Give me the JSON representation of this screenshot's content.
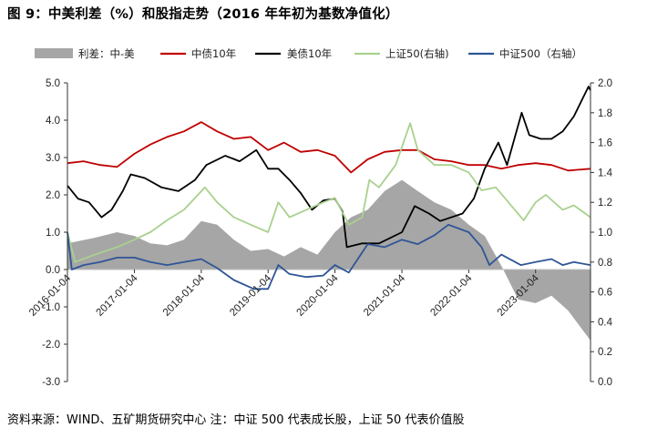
{
  "title": "图 9：中美利差（%）和股指走势（2016 年年初为基数净值化）",
  "source_note": "资料来源：WIND、五矿期货研究中心   注：中证 500 代表成长股，上证 50 代表价值股",
  "chart_data": {
    "type": "line",
    "x_tick_labels": [
      "2016-01-04",
      "2017-01-04",
      "2018-01-04",
      "2019-01-04",
      "2020-01-04",
      "2021-01-04",
      "2022-01-04",
      "2023-01-04"
    ],
    "x_range": [
      "2016-01-04",
      "2023-10-31"
    ],
    "y_left": {
      "min": -3.0,
      "max": 5.0,
      "ticks": [
        "-3.0",
        "-2.0",
        "-1.0",
        "0.0",
        "1.0",
        "2.0",
        "3.0",
        "4.0",
        "5.0"
      ]
    },
    "y_right": {
      "min": 0.0,
      "max": 2.0,
      "ticks": [
        "0.0",
        "0.2",
        "0.4",
        "0.6",
        "0.8",
        "1.0",
        "1.2",
        "1.4",
        "1.6",
        "1.8",
        "2.0"
      ]
    },
    "grid": false,
    "legend_position": "top",
    "series": [
      {
        "name": "利差：中-美",
        "kind": "area",
        "axis": "left",
        "color": "#a6a6a6",
        "x": [
          "2016-01-04",
          "2016-06-01",
          "2016-10-01",
          "2017-01-04",
          "2017-04-01",
          "2017-07-01",
          "2017-10-01",
          "2018-01-04",
          "2018-04-01",
          "2018-07-01",
          "2018-10-01",
          "2019-01-04",
          "2019-04-01",
          "2019-07-01",
          "2019-10-01",
          "2020-01-04",
          "2020-04-01",
          "2020-07-01",
          "2020-10-01",
          "2021-01-04",
          "2021-04-01",
          "2021-07-01",
          "2021-10-01",
          "2022-01-04",
          "2022-04-01",
          "2022-07-01",
          "2022-10-01",
          "2023-01-04",
          "2023-04-01",
          "2023-07-01",
          "2023-10-31"
        ],
        "values": [
          0.7,
          0.85,
          1.0,
          0.9,
          0.7,
          0.65,
          0.8,
          1.3,
          1.2,
          0.8,
          0.5,
          0.55,
          0.35,
          0.6,
          0.4,
          1.0,
          1.4,
          1.6,
          2.1,
          2.4,
          2.1,
          1.8,
          1.6,
          1.2,
          0.9,
          0.1,
          -0.8,
          -0.9,
          -0.7,
          -1.1,
          -1.9
        ]
      },
      {
        "name": "中债10年",
        "kind": "line",
        "axis": "left",
        "color": "#c00000",
        "x": [
          "2016-01-04",
          "2016-04-01",
          "2016-07-01",
          "2016-10-01",
          "2017-01-04",
          "2017-04-01",
          "2017-07-01",
          "2017-10-01",
          "2018-01-04",
          "2018-04-01",
          "2018-07-01",
          "2018-10-01",
          "2019-01-04",
          "2019-04-01",
          "2019-07-01",
          "2019-10-01",
          "2020-01-04",
          "2020-04-01",
          "2020-07-01",
          "2020-10-01",
          "2021-01-04",
          "2021-04-01",
          "2021-07-01",
          "2021-10-01",
          "2022-01-04",
          "2022-04-01",
          "2022-07-01",
          "2022-10-01",
          "2023-01-04",
          "2023-04-01",
          "2023-07-01",
          "2023-10-31"
        ],
        "values": [
          2.85,
          2.9,
          2.8,
          2.75,
          3.1,
          3.35,
          3.55,
          3.7,
          3.95,
          3.7,
          3.5,
          3.55,
          3.2,
          3.4,
          3.15,
          3.2,
          3.05,
          2.6,
          2.95,
          3.15,
          3.2,
          3.2,
          2.95,
          2.9,
          2.8,
          2.8,
          2.7,
          2.8,
          2.85,
          2.8,
          2.65,
          2.7
        ]
      },
      {
        "name": "美债10年",
        "kind": "line",
        "axis": "left",
        "color": "#000000",
        "x": [
          "2016-01-04",
          "2016-03-01",
          "2016-05-01",
          "2016-07-08",
          "2016-09-01",
          "2016-11-01",
          "2016-12-15",
          "2017-03-01",
          "2017-06-01",
          "2017-09-01",
          "2017-12-01",
          "2018-02-01",
          "2018-05-15",
          "2018-08-01",
          "2018-11-01",
          "2019-01-04",
          "2019-03-01",
          "2019-05-01",
          "2019-07-01",
          "2019-09-01",
          "2019-11-01",
          "2020-01-04",
          "2020-02-15",
          "2020-03-09",
          "2020-06-01",
          "2020-09-01",
          "2021-01-04",
          "2021-03-15",
          "2021-06-01",
          "2021-08-01",
          "2021-12-01",
          "2022-02-01",
          "2022-04-01",
          "2022-06-15",
          "2022-08-01",
          "2022-10-20",
          "2022-12-01",
          "2023-02-01",
          "2023-04-01",
          "2023-06-01",
          "2023-08-01",
          "2023-10-20",
          "2023-10-31"
        ],
        "values": [
          2.25,
          1.9,
          1.8,
          1.4,
          1.6,
          2.1,
          2.55,
          2.45,
          2.2,
          2.1,
          2.4,
          2.8,
          3.05,
          2.9,
          3.2,
          2.7,
          2.7,
          2.4,
          2.05,
          1.6,
          1.85,
          1.9,
          1.55,
          0.6,
          0.7,
          0.7,
          1.0,
          1.7,
          1.5,
          1.3,
          1.5,
          1.9,
          2.7,
          3.4,
          2.8,
          4.2,
          3.6,
          3.5,
          3.5,
          3.7,
          4.1,
          4.9,
          4.8
        ]
      },
      {
        "name": "上证50(右轴)",
        "kind": "line",
        "axis": "right",
        "color": "#a9d18e",
        "x": [
          "2016-01-04",
          "2016-02-15",
          "2016-06-01",
          "2016-10-01",
          "2017-01-04",
          "2017-04-01",
          "2017-07-01",
          "2017-10-01",
          "2018-01-24",
          "2018-04-01",
          "2018-07-01",
          "2018-10-01",
          "2019-01-04",
          "2019-03-01",
          "2019-05-01",
          "2019-08-01",
          "2019-11-01",
          "2020-01-04",
          "2020-03-20",
          "2020-06-01",
          "2020-07-10",
          "2020-09-01",
          "2020-12-01",
          "2021-02-18",
          "2021-04-01",
          "2021-07-01",
          "2021-10-01",
          "2022-01-04",
          "2022-03-15",
          "2022-06-01",
          "2022-10-31",
          "2023-01-04",
          "2023-03-01",
          "2023-06-01",
          "2023-08-01",
          "2023-10-31"
        ],
        "values": [
          1.0,
          0.8,
          0.85,
          0.9,
          0.95,
          1.0,
          1.08,
          1.15,
          1.3,
          1.2,
          1.1,
          1.05,
          1.0,
          1.2,
          1.1,
          1.15,
          1.2,
          1.23,
          1.05,
          1.1,
          1.35,
          1.3,
          1.45,
          1.73,
          1.55,
          1.45,
          1.45,
          1.4,
          1.28,
          1.3,
          1.08,
          1.2,
          1.25,
          1.15,
          1.18,
          1.1
        ]
      },
      {
        "name": "中证500（右轴）",
        "kind": "line",
        "axis": "right",
        "color": "#2f5597",
        "x": [
          "2016-01-04",
          "2016-01-28",
          "2016-04-01",
          "2016-07-01",
          "2016-10-01",
          "2017-01-04",
          "2017-04-01",
          "2017-07-01",
          "2017-10-01",
          "2018-01-04",
          "2018-04-01",
          "2018-07-01",
          "2018-10-18",
          "2019-01-04",
          "2019-03-01",
          "2019-05-01",
          "2019-08-01",
          "2019-11-01",
          "2020-01-04",
          "2020-03-20",
          "2020-07-01",
          "2020-10-01",
          "2021-01-04",
          "2021-04-01",
          "2021-07-01",
          "2021-09-15",
          "2022-01-04",
          "2022-03-15",
          "2022-04-27",
          "2022-07-01",
          "2022-10-15",
          "2023-01-04",
          "2023-04-01",
          "2023-06-01",
          "2023-08-01",
          "2023-10-31"
        ],
        "values": [
          1.0,
          0.75,
          0.78,
          0.8,
          0.83,
          0.83,
          0.8,
          0.78,
          0.8,
          0.82,
          0.76,
          0.68,
          0.62,
          0.62,
          0.78,
          0.72,
          0.7,
          0.71,
          0.78,
          0.73,
          0.92,
          0.9,
          0.95,
          0.92,
          0.98,
          1.05,
          1.0,
          0.9,
          0.78,
          0.85,
          0.78,
          0.8,
          0.82,
          0.78,
          0.8,
          0.78
        ]
      }
    ]
  }
}
